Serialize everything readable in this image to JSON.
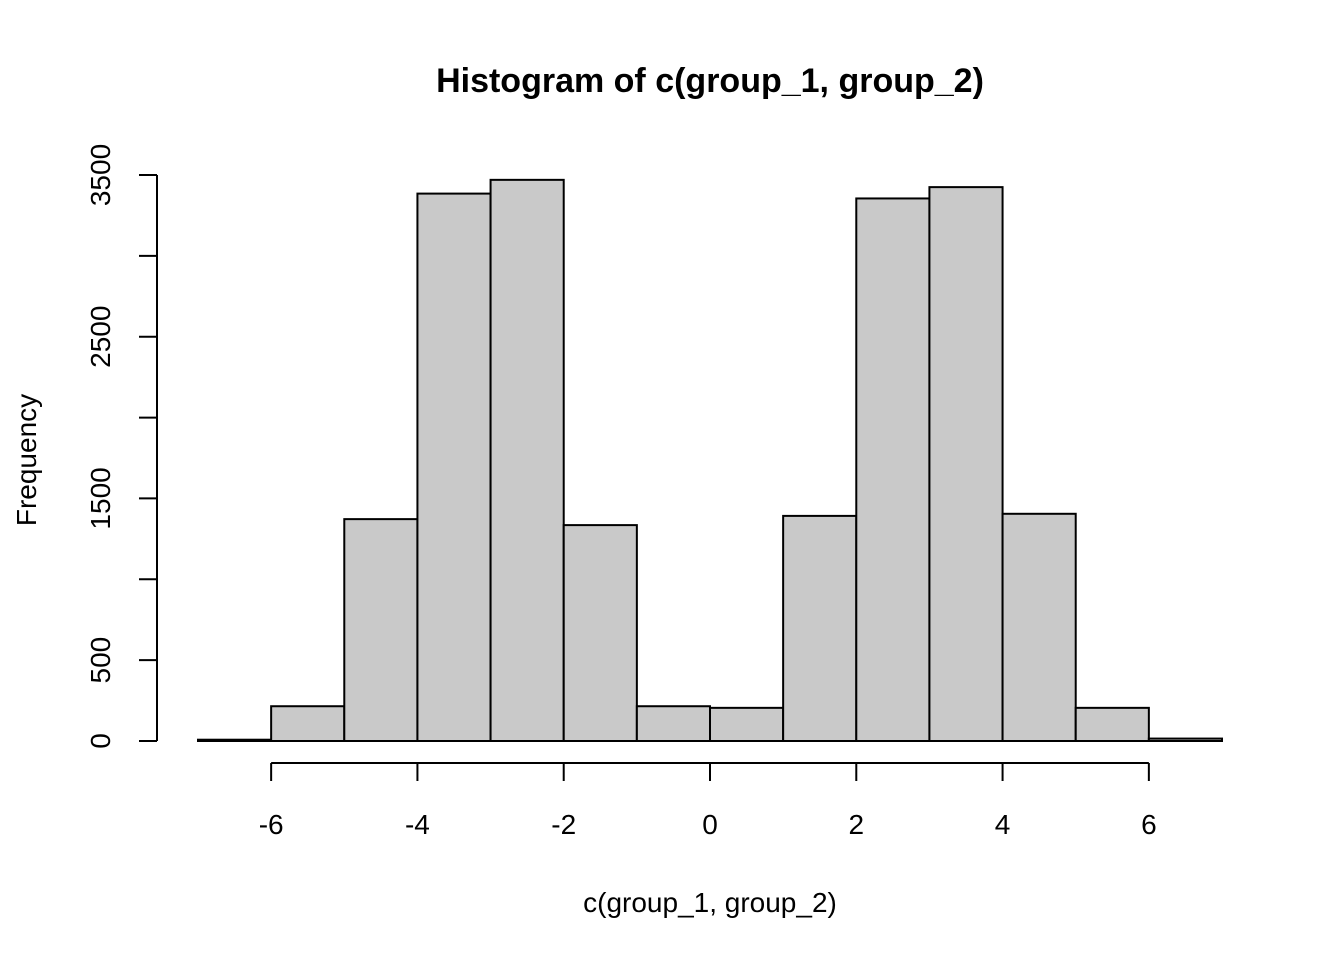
{
  "chart_data": {
    "type": "bar",
    "title": "Histogram of c(group_1, group_2)",
    "xlabel": "c(group_1, group_2)",
    "ylabel": "Frequency",
    "bin_edges": [
      -7,
      -6,
      -5,
      -4,
      -3,
      -2,
      -1,
      0,
      1,
      2,
      3,
      4,
      5,
      6,
      7
    ],
    "values": [
      8,
      215,
      1372,
      3385,
      3470,
      1335,
      215,
      205,
      1392,
      3355,
      3425,
      1405,
      205,
      15
    ],
    "xlim": [
      -7,
      7
    ],
    "ylim": [
      0,
      3500
    ],
    "x_ticks": [
      -6,
      -4,
      -2,
      0,
      2,
      4,
      6
    ],
    "x_tick_labels": [
      "-6",
      "-4",
      "-2",
      "0",
      "2",
      "4",
      "6"
    ],
    "y_ticks": [
      0,
      500,
      1000,
      1500,
      2000,
      2500,
      3000,
      3500
    ],
    "y_tick_labels": [
      "0",
      "500",
      "",
      "1500",
      "",
      "2500",
      "",
      "3500"
    ],
    "bar_color": "#c9c9c9",
    "grid": false,
    "legend": "none"
  }
}
